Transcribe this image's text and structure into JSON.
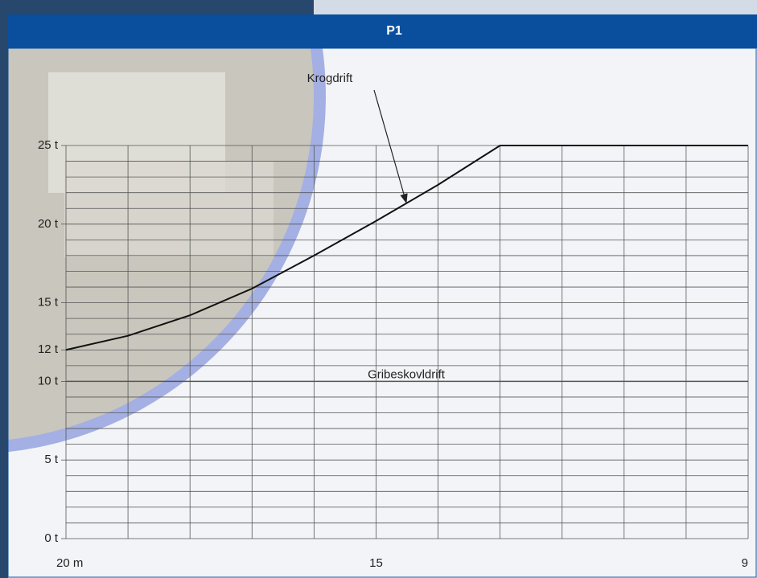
{
  "chart_data": {
    "type": "line",
    "title": "P1",
    "x": [
      20,
      19,
      18,
      17,
      16,
      15,
      14,
      13,
      12,
      11,
      10,
      9
    ],
    "series": [
      {
        "name": "Krogdrift",
        "color": "#111111",
        "values": [
          12,
          12.9,
          14.2,
          15.9,
          18,
          20.2,
          22.5,
          25,
          25,
          25,
          25,
          25
        ]
      },
      {
        "name": "Gribeskovldrift",
        "color": "#555555",
        "values": [
          10,
          10,
          10,
          10,
          10,
          10,
          10,
          10,
          10,
          10,
          10,
          10
        ]
      }
    ],
    "xlim": [
      20,
      9
    ],
    "xticks": [
      {
        "value": 20,
        "label": "20 m"
      },
      15,
      9
    ],
    "ylim": [
      0,
      25
    ],
    "yticks": [
      {
        "value": 0,
        "label": "0 t"
      },
      {
        "value": 5,
        "label": "5 t"
      },
      {
        "value": 10,
        "label": "10 t"
      },
      {
        "value": 12,
        "label": "12 t"
      },
      {
        "value": 15,
        "label": "15 t"
      },
      {
        "value": 20,
        "label": "20 t"
      },
      {
        "value": 25,
        "label": "25 t"
      }
    ],
    "x_gridlines": [
      20,
      19,
      18,
      17,
      16,
      15,
      14,
      13,
      12,
      11,
      10,
      9
    ],
    "y_gridlines": [
      0,
      1,
      2,
      3,
      4,
      5,
      6,
      7,
      8,
      9,
      10,
      11,
      12,
      13,
      14,
      15,
      16,
      17,
      18,
      19,
      20,
      21,
      22,
      23,
      24,
      25
    ],
    "grid": true
  }
}
